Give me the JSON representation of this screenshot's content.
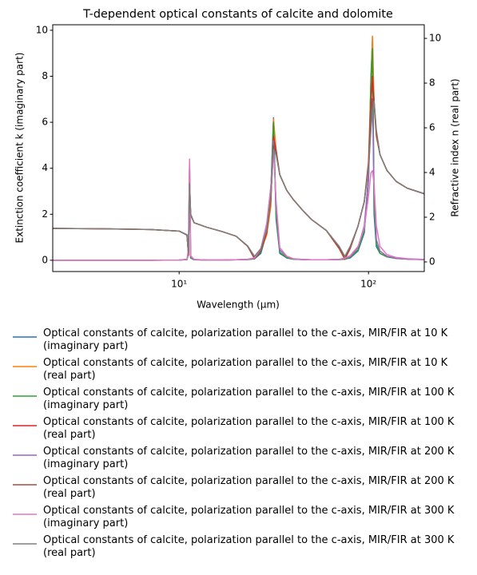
{
  "chart_data": {
    "type": "line",
    "title": "T-dependent optical constants of calcite and dolomite",
    "x_label": "Wavelength (μm)",
    "y_label": "Extinction coefficient k (imaginary part)",
    "y2_label": "Refractive index n (real part)",
    "xscale": "log",
    "xlim": [
      2.15,
      197
    ],
    "xticks": [
      {
        "value": 10,
        "label": "10¹"
      },
      {
        "value": 100,
        "label": "10²"
      }
    ],
    "ylim": [
      -0.49,
      10.24
    ],
    "yticks": [
      0,
      2,
      4,
      6,
      8,
      10
    ],
    "y2lim": [
      -0.43,
      10.61
    ],
    "y2ticks": [
      0,
      2,
      4,
      6,
      8,
      10
    ],
    "legend": "below",
    "x": [
      2.15,
      4,
      7,
      10,
      11.0,
      11.2,
      11.35,
      11.5,
      12,
      14,
      17,
      20,
      23,
      25,
      27,
      29,
      30.5,
      31.5,
      32.5,
      34,
      37,
      40,
      45,
      50,
      60,
      70,
      75,
      80,
      88,
      95,
      100,
      103,
      105,
      107,
      110,
      115,
      125,
      140,
      160,
      197
    ],
    "series": [
      {
        "name": "Optical constants of calcite, polarization parallel to the c-axis, MIR/FIR at 10 K (imaginary part)",
        "color": "#1f77b4",
        "axis": "y",
        "values": [
          0,
          0,
          0,
          0.01,
          0.03,
          0.3,
          4.2,
          0.1,
          0.02,
          0.01,
          0.01,
          0.02,
          0.03,
          0.06,
          0.3,
          1.2,
          3.0,
          6.2,
          1.8,
          0.3,
          0.1,
          0.05,
          0.03,
          0.02,
          0.02,
          0.03,
          0.05,
          0.1,
          0.4,
          1.2,
          3.5,
          8.0,
          9.7,
          2.0,
          0.6,
          0.3,
          0.15,
          0.08,
          0.05,
          0.03
        ]
      },
      {
        "name": "Optical constants of calcite, polarization parallel to the c-axis, MIR/FIR at 10 K (real part)",
        "color": "#ff7f0e",
        "axis": "y2",
        "values": [
          1.5,
          1.48,
          1.45,
          1.38,
          1.2,
          0.3,
          3.7,
          2.1,
          1.75,
          1.55,
          1.35,
          1.15,
          0.7,
          0.15,
          0.5,
          1.2,
          2.5,
          6.4,
          5.0,
          3.9,
          3.2,
          2.8,
          2.3,
          1.9,
          1.4,
          0.6,
          0.1,
          0.6,
          1.6,
          2.7,
          4.5,
          8.0,
          10.1,
          7.0,
          5.6,
          4.8,
          4.1,
          3.6,
          3.3,
          3.05
        ]
      },
      {
        "name": "Optical constants of calcite, polarization parallel to the c-axis, MIR/FIR at 100 K (imaginary part)",
        "color": "#2ca02c",
        "axis": "y",
        "values": [
          0,
          0,
          0,
          0.01,
          0.03,
          0.3,
          4.1,
          0.1,
          0.02,
          0.01,
          0.01,
          0.02,
          0.03,
          0.07,
          0.35,
          1.3,
          3.1,
          6.0,
          2.0,
          0.35,
          0.1,
          0.05,
          0.03,
          0.02,
          0.02,
          0.03,
          0.06,
          0.12,
          0.45,
          1.3,
          3.6,
          7.6,
          9.2,
          2.3,
          0.7,
          0.3,
          0.15,
          0.08,
          0.05,
          0.03
        ]
      },
      {
        "name": "Optical constants of calcite, polarization parallel to the c-axis, MIR/FIR at 100 K (real part)",
        "color": "#d62728",
        "axis": "y2",
        "values": [
          1.5,
          1.48,
          1.45,
          1.38,
          1.2,
          0.3,
          3.6,
          2.1,
          1.75,
          1.55,
          1.35,
          1.15,
          0.7,
          0.15,
          0.5,
          1.3,
          2.8,
          5.6,
          5.0,
          3.9,
          3.2,
          2.8,
          2.3,
          1.9,
          1.4,
          0.6,
          0.15,
          0.6,
          1.6,
          2.7,
          4.4,
          7.0,
          8.3,
          7.2,
          5.7,
          4.8,
          4.1,
          3.6,
          3.3,
          3.05
        ]
      },
      {
        "name": "Optical constants of calcite, polarization parallel to the c-axis, MIR/FIR at 200 K (imaginary part)",
        "color": "#9467bd",
        "axis": "y",
        "values": [
          0,
          0,
          0,
          0.01,
          0.04,
          0.4,
          4.0,
          0.15,
          0.03,
          0.01,
          0.01,
          0.02,
          0.04,
          0.09,
          0.45,
          1.5,
          3.2,
          5.2,
          2.4,
          0.45,
          0.15,
          0.06,
          0.03,
          0.02,
          0.02,
          0.04,
          0.08,
          0.15,
          0.55,
          1.5,
          3.6,
          6.3,
          7.0,
          3.0,
          0.9,
          0.4,
          0.18,
          0.09,
          0.05,
          0.03
        ]
      },
      {
        "name": "Optical constants of calcite, polarization parallel to the c-axis, MIR/FIR at 200 K (real part)",
        "color": "#8c564b",
        "axis": "y2",
        "values": [
          1.5,
          1.48,
          1.45,
          1.38,
          1.2,
          0.35,
          3.5,
          2.1,
          1.75,
          1.55,
          1.35,
          1.15,
          0.7,
          0.2,
          0.55,
          1.4,
          2.9,
          5.2,
          4.9,
          3.9,
          3.2,
          2.8,
          2.3,
          1.9,
          1.4,
          0.65,
          0.2,
          0.65,
          1.6,
          2.7,
          4.3,
          6.3,
          7.3,
          7.1,
          5.8,
          4.8,
          4.1,
          3.6,
          3.3,
          3.05
        ]
      },
      {
        "name": "Optical constants of calcite, polarization parallel to the c-axis, MIR/FIR at 300 K (imaginary part)",
        "color": "#e377c2",
        "axis": "y",
        "values": [
          0,
          0,
          0,
          0.01,
          0.05,
          0.5,
          4.4,
          0.2,
          0.04,
          0.01,
          0.01,
          0.02,
          0.05,
          0.1,
          0.5,
          1.6,
          3.2,
          4.8,
          2.6,
          0.55,
          0.18,
          0.07,
          0.04,
          0.02,
          0.02,
          0.04,
          0.1,
          0.2,
          0.6,
          1.4,
          2.8,
          3.8,
          3.9,
          3.3,
          1.5,
          0.6,
          0.25,
          0.12,
          0.07,
          0.04
        ]
      },
      {
        "name": "Optical constants of calcite, polarization parallel to the c-axis, MIR/FIR at 300 K (real part)",
        "color": "#7f7f7f",
        "axis": "y2",
        "values": [
          1.5,
          1.48,
          1.45,
          1.38,
          1.22,
          0.4,
          3.5,
          2.15,
          1.75,
          1.55,
          1.35,
          1.15,
          0.72,
          0.25,
          0.6,
          1.45,
          3.0,
          5.0,
          4.8,
          3.9,
          3.2,
          2.8,
          2.3,
          1.9,
          1.4,
          0.7,
          0.25,
          0.7,
          1.6,
          2.7,
          4.2,
          5.9,
          6.8,
          7.2,
          5.9,
          4.8,
          4.1,
          3.6,
          3.3,
          3.05
        ]
      }
    ]
  }
}
